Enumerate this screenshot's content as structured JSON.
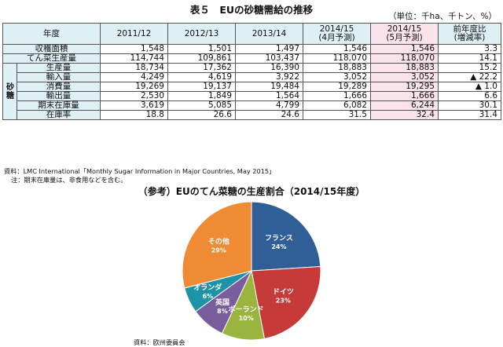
{
  "title": "表５　EUの砂糖需給の推移",
  "unit": "（単位：千ha、千トン、%）",
  "table": {
    "corner": "年度",
    "columns": [
      "2011/12",
      "2012/13",
      "2013/14",
      "2014/15\n(4月予測)",
      "2014/15\n(5月予測)",
      "前年度比\n(増減率)"
    ],
    "side_label": "砂\n糖",
    "rows": [
      {
        "label": "収穫面積",
        "values": [
          "1,548",
          "1,501",
          "1,497",
          "1,546",
          "1,546",
          "3.3"
        ]
      },
      {
        "label": "てん菜生産量",
        "values": [
          "114,744",
          "109,861",
          "103,437",
          "118,070",
          "118,070",
          "14.1"
        ]
      },
      {
        "label": "生産量",
        "values": [
          "18,734",
          "17,362",
          "16,390",
          "18,883",
          "18,883",
          "15.2"
        ]
      },
      {
        "label": "輸入量",
        "values": [
          "4,249",
          "4,619",
          "3,922",
          "3,052",
          "3,052",
          "▲ 22.2"
        ]
      },
      {
        "label": "消費量",
        "values": [
          "19,269",
          "19,137",
          "19,484",
          "19,289",
          "19,295",
          "▲ 1.0"
        ]
      },
      {
        "label": "輸出量",
        "values": [
          "2,530",
          "1,849",
          "1,564",
          "1,666",
          "1,666",
          "6.6"
        ]
      },
      {
        "label": "期末在庫量",
        "values": [
          "3,619",
          "5,085",
          "4,799",
          "6,082",
          "6,244",
          "30.1"
        ]
      },
      {
        "label": "在庫率",
        "values": [
          "18.8",
          "26.6",
          "24.6",
          "31.5",
          "32.4",
          "31.4"
        ]
      }
    ]
  },
  "source1": "資料：LMC International「Monthly Sugar Information in Major Countries, May 2015」",
  "source2": "注：期末在庫量は、非食用などを含む。",
  "pie_title": "（参考）EUのてん菜糖の生産割合（2014/15年度）",
  "source3": "資料：欧州委員会",
  "chart_data": {
    "type": "pie",
    "title": "（参考）EUのてん菜糖の生産割合（2014/15年度）",
    "slices": [
      {
        "name": "フランス",
        "value": 24,
        "label": "24%",
        "color": "#2f5f96"
      },
      {
        "name": "ドイツ",
        "value": 23,
        "label": "23%",
        "color": "#c63a3a"
      },
      {
        "name": "ポーランド",
        "value": 10,
        "label": "10%",
        "color": "#99b43f"
      },
      {
        "name": "英国",
        "value": 8,
        "label": "8%",
        "color": "#7a5d9c"
      },
      {
        "name": "オランダ",
        "value": 6,
        "label": "6%",
        "color": "#1d93a8"
      },
      {
        "name": "その他",
        "value": 29,
        "label": "29%",
        "color": "#ef8a35"
      }
    ]
  }
}
